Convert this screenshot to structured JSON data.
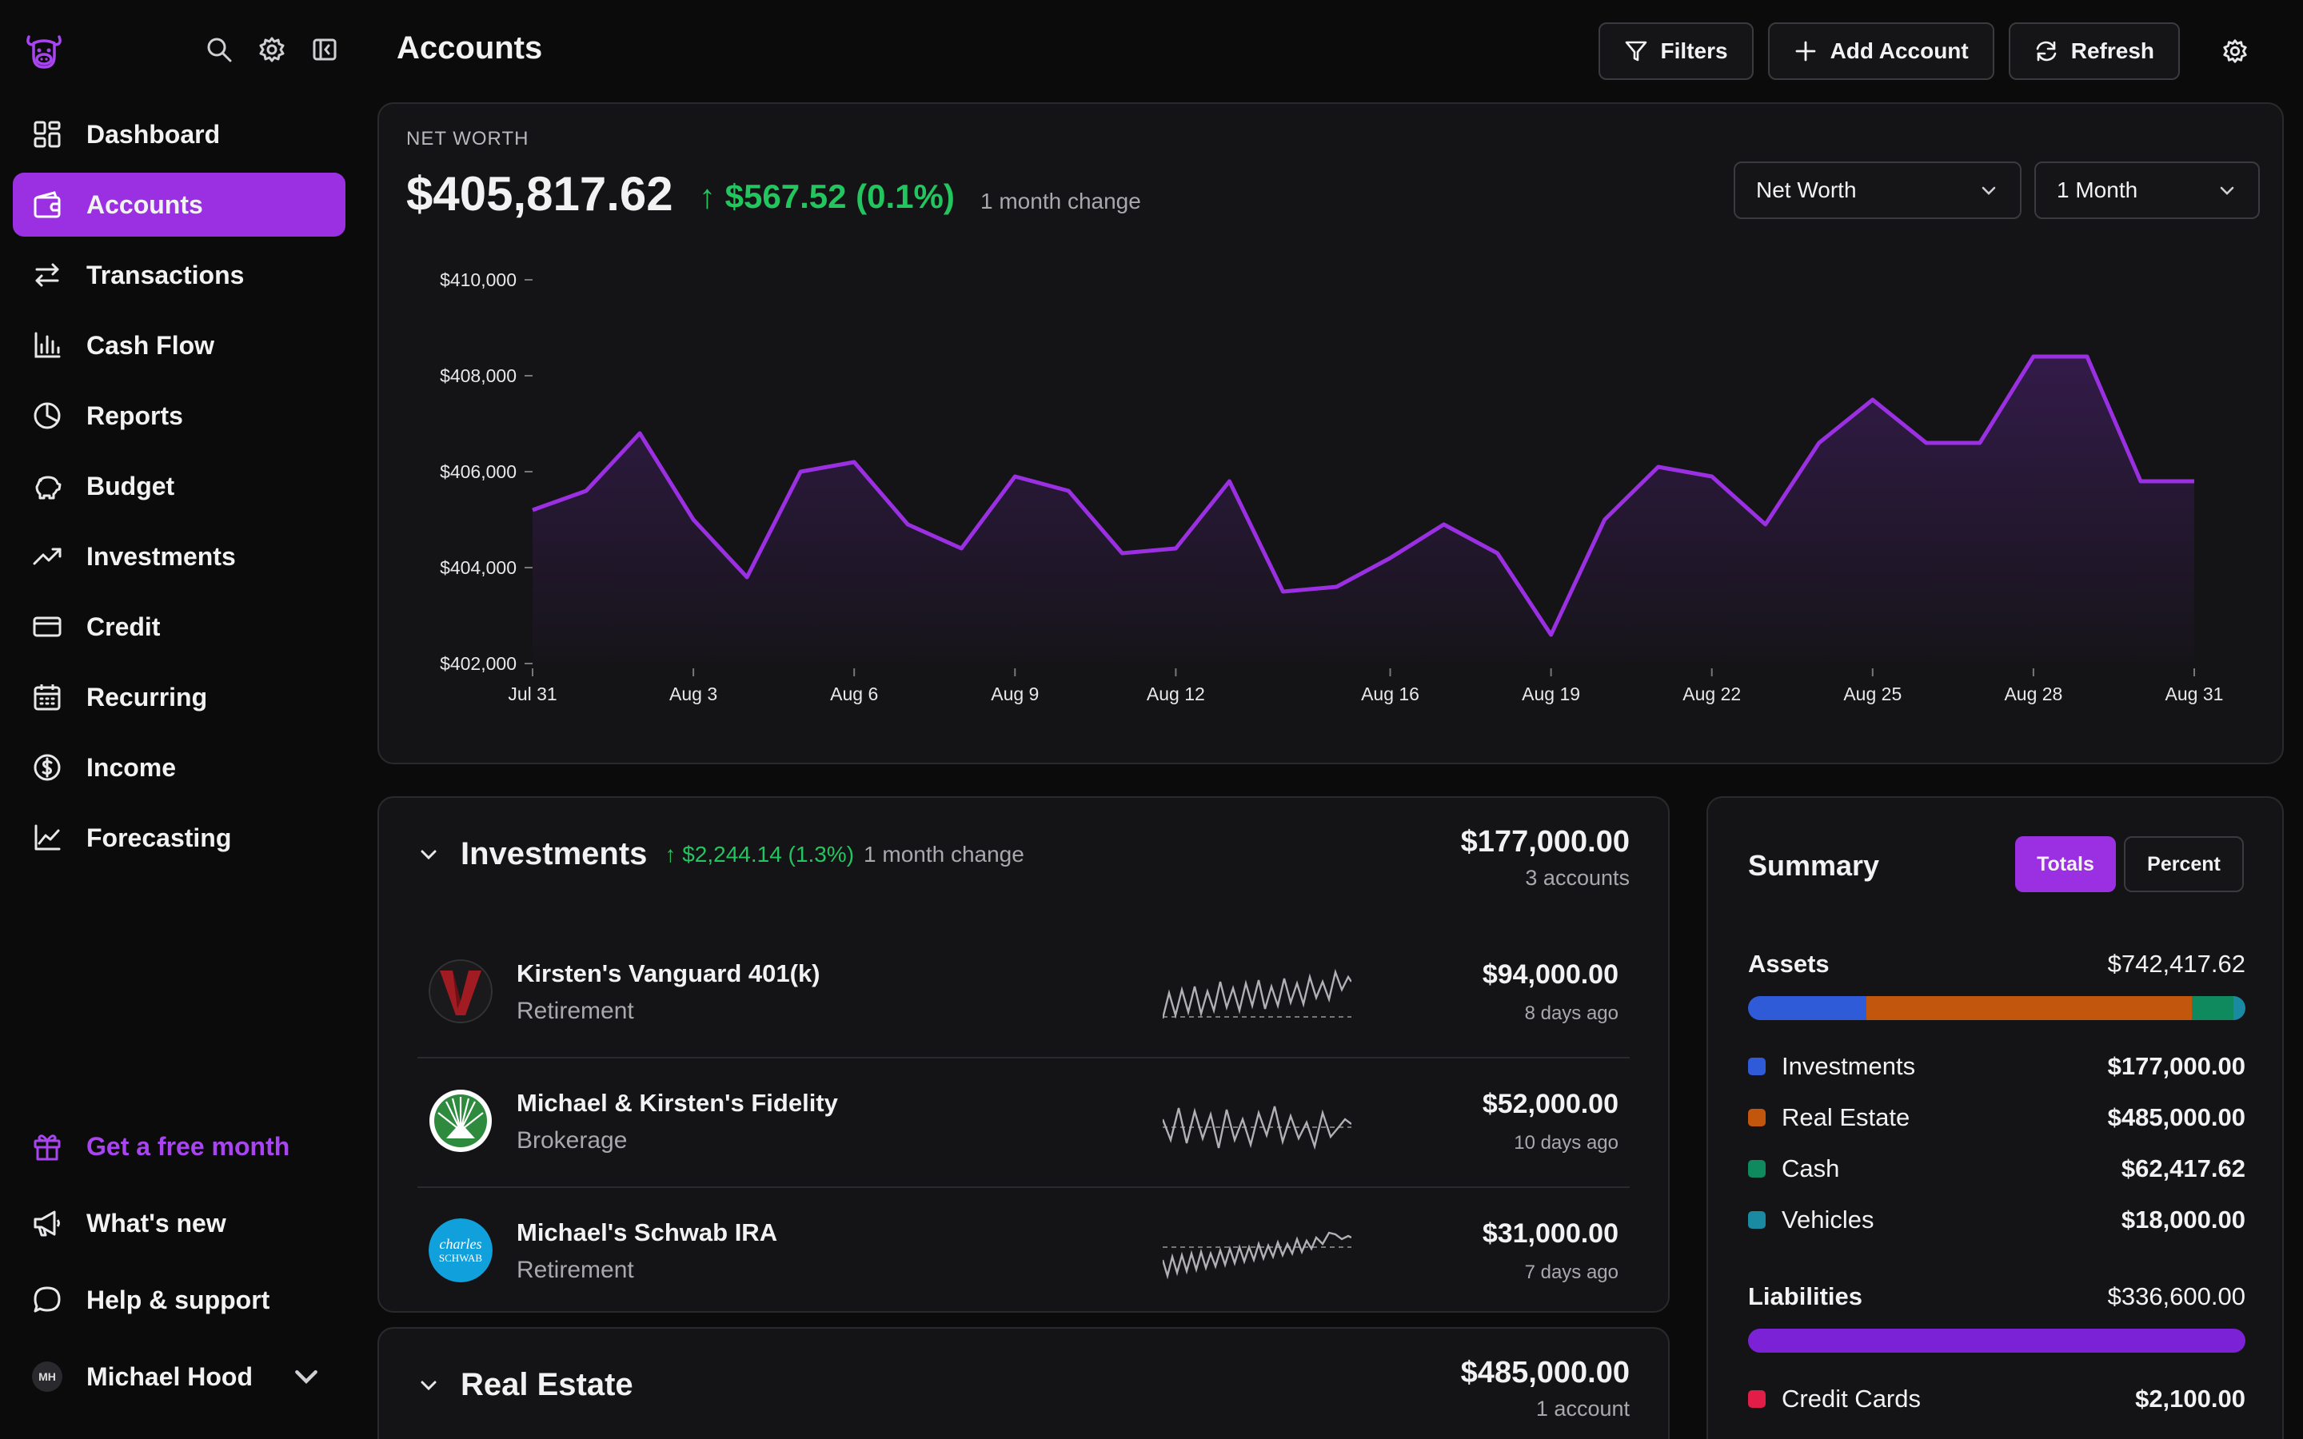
{
  "nav": {
    "items": [
      {
        "label": "Dashboard",
        "icon": "dashboard-icon"
      },
      {
        "label": "Accounts",
        "icon": "wallet-icon",
        "active": true
      },
      {
        "label": "Transactions",
        "icon": "arrows-icon"
      },
      {
        "label": "Cash Flow",
        "icon": "bar-chart-icon"
      },
      {
        "label": "Reports",
        "icon": "pie-chart-icon"
      },
      {
        "label": "Budget",
        "icon": "piggy-bank-icon"
      },
      {
        "label": "Investments",
        "icon": "trend-up-icon"
      },
      {
        "label": "Credit",
        "icon": "credit-card-icon"
      },
      {
        "label": "Recurring",
        "icon": "calendar-icon"
      },
      {
        "label": "Income",
        "icon": "dollar-circle-icon"
      },
      {
        "label": "Forecasting",
        "icon": "line-chart-icon"
      }
    ],
    "promo": "Get a free month",
    "whats_new": "What's new",
    "help": "Help & support",
    "user_name": "Michael Hood",
    "user_initials": "MH"
  },
  "header": {
    "title": "Accounts",
    "filters": "Filters",
    "add_account": "Add Account",
    "refresh": "Refresh"
  },
  "net_worth": {
    "label": "NET WORTH",
    "value": "$405,817.62",
    "change": "↑ $567.52 (0.1%)",
    "change_sub": "1 month change",
    "metric_select": "Net Worth",
    "range_select": "1 Month"
  },
  "chart_data": {
    "type": "area",
    "title": "",
    "xlabel": "",
    "ylabel": "",
    "ylim": [
      402000,
      410000
    ],
    "y_ticks": [
      "$410,000",
      "$408,000",
      "$406,000",
      "$404,000",
      "$402,000"
    ],
    "y_tick_values": [
      410000,
      408000,
      406000,
      404000,
      402000
    ],
    "x_ticks": [
      "Jul 31",
      "Aug 3",
      "Aug 6",
      "Aug 9",
      "Aug 12",
      "Aug 16",
      "Aug 19",
      "Aug 22",
      "Aug 25",
      "Aug 28",
      "Aug 31"
    ],
    "x_tick_days": [
      0,
      3,
      6,
      9,
      12,
      16,
      19,
      22,
      25,
      28,
      31
    ],
    "series": [
      {
        "values": [
          405200,
          405600,
          406800,
          405000,
          403800,
          406000,
          406200,
          404900,
          404400,
          405900,
          405600,
          404300,
          404400,
          405800,
          403500,
          403600,
          404200,
          404900,
          404300,
          402600,
          405000,
          406100,
          405900,
          404900,
          406600,
          407500,
          406600,
          406600,
          408400,
          408400,
          405800,
          405800
        ]
      }
    ],
    "line_color": "#9b30e3",
    "grid": false
  },
  "investments": {
    "title": "Investments",
    "change": "↑ $2,244.14 (1.3%)",
    "change_sub": "1 month change",
    "total": "$177,000.00",
    "count": "3 accounts",
    "accounts": [
      {
        "name": "Kirsten's Vanguard 401(k)",
        "type": "Retirement",
        "balance": "$94,000.00",
        "updated": "8 days ago",
        "logo": "vanguard-logo"
      },
      {
        "name": "Michael & Kirsten's Fidelity",
        "type": "Brokerage",
        "balance": "$52,000.00",
        "updated": "10 days ago",
        "logo": "fidelity-logo"
      },
      {
        "name": "Michael's Schwab IRA",
        "type": "Retirement",
        "balance": "$31,000.00",
        "updated": "7 days ago",
        "logo": "schwab-logo",
        "logo_text": "charles SCHWAB"
      }
    ]
  },
  "real_estate": {
    "title": "Real Estate",
    "total": "$485,000.00",
    "count": "1 account"
  },
  "summary": {
    "title": "Summary",
    "totals": "Totals",
    "percent": "Percent",
    "assets_label": "Assets",
    "assets_total": "$742,417.62",
    "assets": [
      {
        "label": "Investments",
        "value": "$177,000.00",
        "color": "#2f5bd9",
        "amount": 177000
      },
      {
        "label": "Real Estate",
        "value": "$485,000.00",
        "color": "#c2560c",
        "amount": 485000
      },
      {
        "label": "Cash",
        "value": "$62,417.62",
        "color": "#0f8a5f",
        "amount": 62417.62
      },
      {
        "label": "Vehicles",
        "value": "$18,000.00",
        "color": "#1a8aa3",
        "amount": 18000
      }
    ],
    "liabilities_label": "Liabilities",
    "liabilities_total": "$336,600.00",
    "liabilities": [
      {
        "label": "Credit Cards",
        "value": "$2,100.00",
        "color": "#e11d48"
      }
    ],
    "liability_bar_color": "#7c22d6"
  }
}
